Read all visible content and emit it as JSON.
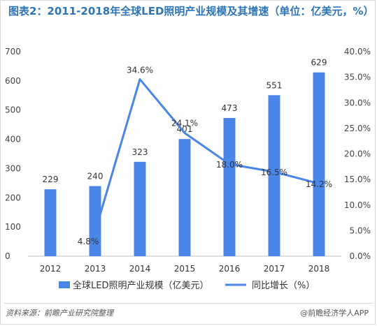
{
  "chart_data": {
    "type": "bar",
    "title": "图表2：2011-2018年全球LED照明产业规模及其增速（单位：亿美元，%）",
    "categories": [
      "2012",
      "2013",
      "2014",
      "2015",
      "2016",
      "2017",
      "2018"
    ],
    "series": [
      {
        "name": "全球LED照明产业规模（亿美元）",
        "type": "bar",
        "axis": "left",
        "values": [
          229,
          240,
          323,
          401,
          473,
          551,
          629
        ],
        "labels": [
          "229",
          "240",
          "323",
          "401",
          "473",
          "551",
          "629"
        ]
      },
      {
        "name": "同比增长（%）",
        "type": "line",
        "axis": "right",
        "values": [
          null,
          4.8,
          34.6,
          24.1,
          18.0,
          16.5,
          14.2
        ],
        "labels": [
          "",
          "4.8%",
          "34.6%",
          "24.1%",
          "18.0%",
          "16.5%",
          "14.2%"
        ]
      }
    ],
    "y_left": {
      "min": 0,
      "max": 700,
      "ticks": [
        "0",
        "100",
        "200",
        "300",
        "400",
        "500",
        "600",
        "700"
      ]
    },
    "y_right": {
      "min": 0,
      "max": 40,
      "ticks": [
        "0.0%",
        "5.0%",
        "10.0%",
        "15.0%",
        "20.0%",
        "25.0%",
        "30.0%",
        "35.0%",
        "40.0%"
      ]
    },
    "grid": false,
    "legend": "bottom",
    "colors": {
      "bar": "#4a86e8",
      "line": "#4a86e8",
      "title": "#2e75b6"
    }
  },
  "footer": {
    "source": "资料来源：前瞻产业研究院整理",
    "brand": "@前瞻经济学人APP"
  }
}
